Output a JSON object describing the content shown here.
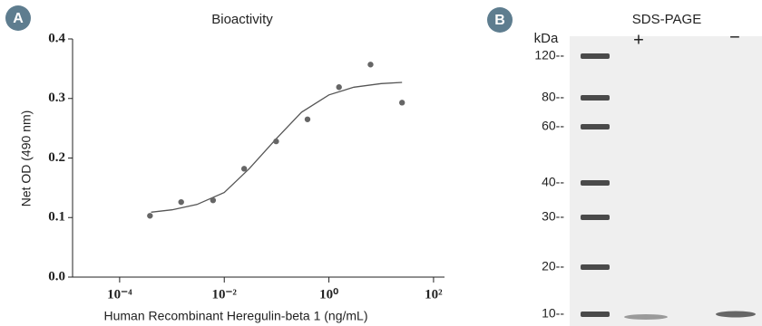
{
  "badges": [
    "A",
    "B"
  ],
  "chart_data": {
    "type": "scatter",
    "title": "Bioactivity",
    "x_label": "Human Recombinant Heregulin-beta 1 (ng/mL)",
    "y_label": "Net OD (490 nm)",
    "x_log": true,
    "color": "#666666",
    "x": [
      0.00038,
      0.0015,
      0.0061,
      0.024,
      0.098,
      0.39,
      1.56,
      6.25,
      25
    ],
    "values": [
      0.103,
      0.126,
      0.129,
      0.182,
      0.228,
      0.265,
      0.319,
      0.357,
      0.293
    ],
    "fit": {
      "color": "#555555",
      "x": [
        0.0004,
        0.001,
        0.003,
        0.01,
        0.03,
        0.1,
        0.3,
        1,
        3,
        10,
        25
      ],
      "values": [
        0.109,
        0.113,
        0.122,
        0.142,
        0.182,
        0.233,
        0.277,
        0.306,
        0.319,
        0.325,
        0.327
      ]
    },
    "xlim": [
      1.26e-05,
      162
    ],
    "ylim": [
      0,
      0.4
    ],
    "xticks": [
      {
        "value": 0.0001,
        "label": "10⁻⁴"
      },
      {
        "value": 0.01,
        "label": "10⁻²"
      },
      {
        "value": 1,
        "label": "10⁰"
      },
      {
        "value": 100,
        "label": "10²"
      }
    ],
    "yticks": [
      {
        "value": 0,
        "label": "0.0"
      },
      0.1,
      0.2,
      0.3,
      0.4
    ]
  },
  "gel": {
    "title": "SDS-PAGE",
    "unit": "kDa",
    "lanes": [
      "+",
      "−"
    ],
    "markers": [
      "120--",
      "80--",
      "60--",
      "40--",
      "30--",
      "20--",
      "10--"
    ]
  }
}
